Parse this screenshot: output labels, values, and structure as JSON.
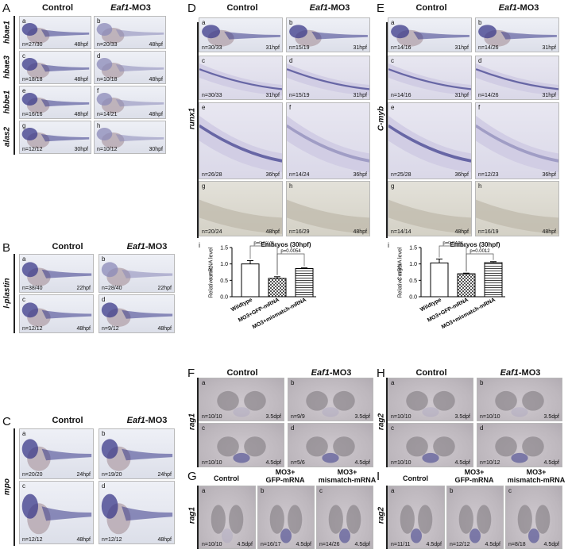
{
  "labels": {
    "control": "Control",
    "eaf1": "Eaf1",
    "mo3": "-MO3",
    "control_g": "Control",
    "gfp_line1": "MO3+",
    "gfp_line2": "GFP-mRNA",
    "mm_line1": "MO3+",
    "mm_line2": "mismatch-mRNA"
  },
  "panels": {
    "A": {
      "letter": "A",
      "genes": [
        "hbae1",
        "hbae3",
        "hbbe1",
        "alas2"
      ],
      "tiles": [
        {
          "sub": "a",
          "count": "n=27/30",
          "stage": "48hpf"
        },
        {
          "sub": "b",
          "count": "n=20/33",
          "stage": "48hpf"
        },
        {
          "sub": "c",
          "count": "n=18/18",
          "stage": "48hpf"
        },
        {
          "sub": "d",
          "count": "n=10/18",
          "stage": "48hpf"
        },
        {
          "sub": "e",
          "count": "n=16/16",
          "stage": "48hpf"
        },
        {
          "sub": "f",
          "count": "n=14/21",
          "stage": "48hpf"
        },
        {
          "sub": "g",
          "count": "n=12/12",
          "stage": "30hpf"
        },
        {
          "sub": "h",
          "count": "n=10/12",
          "stage": "30hpf"
        }
      ]
    },
    "B": {
      "letter": "B",
      "genes": [
        "l-plastin"
      ],
      "tiles": [
        {
          "sub": "a",
          "count": "n=38/40",
          "stage": "22hpf"
        },
        {
          "sub": "b",
          "count": "n=28/40",
          "stage": "22hpf"
        },
        {
          "sub": "c",
          "count": "n=12/12",
          "stage": "48hpf"
        },
        {
          "sub": "d",
          "count": "n=9/12",
          "stage": "48hpf"
        }
      ]
    },
    "C": {
      "letter": "C",
      "genes": [
        "mpo"
      ],
      "tiles": [
        {
          "sub": "a",
          "count": "n=20/20",
          "stage": "24hpf"
        },
        {
          "sub": "b",
          "count": "n=19/20",
          "stage": "24hpf"
        },
        {
          "sub": "c",
          "count": "n=12/12",
          "stage": "48hpf"
        },
        {
          "sub": "d",
          "count": "n=12/12",
          "stage": "48hpf"
        }
      ]
    },
    "D": {
      "letter": "D",
      "genes": [
        "runx1"
      ],
      "tiles": [
        {
          "sub": "a",
          "count": "n=30/33",
          "stage": "31hpf"
        },
        {
          "sub": "b",
          "count": "n=15/19",
          "stage": "31hpf"
        },
        {
          "sub": "c",
          "count": "n=30/33",
          "stage": "31hpf"
        },
        {
          "sub": "d",
          "count": "n=15/19",
          "stage": "31hpf"
        },
        {
          "sub": "e",
          "count": "n=26/28",
          "stage": "36hpf"
        },
        {
          "sub": "f",
          "count": "n=14/24",
          "stage": "36hpf"
        },
        {
          "sub": "g",
          "count": "n=20/24",
          "stage": "48hpf"
        },
        {
          "sub": "h",
          "count": "n=16/29",
          "stage": "48hpf"
        }
      ]
    },
    "E": {
      "letter": "E",
      "genes": [
        "C-myb"
      ],
      "tiles": [
        {
          "sub": "a",
          "count": "n=14/16",
          "stage": "31hpf"
        },
        {
          "sub": "b",
          "count": "n=14/26",
          "stage": "31hpf"
        },
        {
          "sub": "c",
          "count": "n=14/16",
          "stage": "31hpf"
        },
        {
          "sub": "d",
          "count": "n=14/26",
          "stage": "31hpf"
        },
        {
          "sub": "e",
          "count": "n=25/28",
          "stage": "36hpf"
        },
        {
          "sub": "f",
          "count": "n=12/23",
          "stage": "36hpf"
        },
        {
          "sub": "g",
          "count": "n=14/14",
          "stage": "48hpf"
        },
        {
          "sub": "h",
          "count": "n=16/19",
          "stage": "48hpf"
        }
      ]
    },
    "F": {
      "letter": "F",
      "genes": [
        "rag1"
      ],
      "tiles": [
        {
          "sub": "a",
          "count": "n=10/10",
          "stage": "3.5dpf"
        },
        {
          "sub": "b",
          "count": "n=9/9",
          "stage": "3.5dpf"
        },
        {
          "sub": "c",
          "count": "n=10/10",
          "stage": "4.5dpf"
        },
        {
          "sub": "d",
          "count": "n=5/6",
          "stage": "4.5dpf"
        }
      ]
    },
    "H": {
      "letter": "H",
      "genes": [
        "rag2"
      ],
      "tiles": [
        {
          "sub": "a",
          "count": "n=10/10",
          "stage": "3.5dpf"
        },
        {
          "sub": "b",
          "count": "n=10/10",
          "stage": "3.5dpf"
        },
        {
          "sub": "c",
          "count": "n=10/10",
          "stage": "4.5dpf"
        },
        {
          "sub": "d",
          "count": "n=10/12",
          "stage": "4.5dpf"
        }
      ]
    },
    "G": {
      "letter": "G",
      "genes": [
        "rag1"
      ],
      "tiles": [
        {
          "sub": "a",
          "count": "n=10/10",
          "stage": "4.5dpf"
        },
        {
          "sub": "b",
          "count": "n=16/17",
          "stage": "4.5dpf"
        },
        {
          "sub": "c",
          "count": "n=14/26",
          "stage": "4.5dpf"
        }
      ]
    },
    "I": {
      "letter": "I",
      "genes": [
        "rag2"
      ],
      "tiles": [
        {
          "sub": "a",
          "count": "n=11/11",
          "stage": "4.5dpf"
        },
        {
          "sub": "b",
          "count": "n=12/12",
          "stage": "4.5dpf"
        },
        {
          "sub": "c",
          "count": "n=8/18",
          "stage": "4.5dpf"
        }
      ]
    }
  },
  "chart_data": [
    {
      "type": "bar",
      "panel_label": "i",
      "title": "Embryos (30hpf)",
      "ylabel_line1": "runx1",
      "ylabel_line2": "Relative mRNA level",
      "categories": [
        "Wildtype",
        "MO3+GFP-mRNA",
        "MO3+mismatch-mRNA"
      ],
      "values": [
        1.0,
        0.56,
        0.86
      ],
      "errors": [
        0.1,
        0.05,
        0.02
      ],
      "ylim": [
        0,
        1.5
      ],
      "yticks": [
        "0.0",
        "0.5",
        "1.0",
        "1.5"
      ],
      "annotations": [
        "p=0.0279",
        "p=0.0054"
      ]
    },
    {
      "type": "bar",
      "panel_label": "i",
      "title": "Embryos (30hpf)",
      "ylabel_line1": "C-myb",
      "ylabel_line2": "Relative mRNA level",
      "categories": [
        "Wildtype",
        "MO3+GFP-mRNA",
        "MO3+mismatch-mRNA"
      ],
      "values": [
        1.03,
        0.7,
        1.04
      ],
      "errors": [
        0.12,
        0.02,
        0.03
      ],
      "ylim": [
        0,
        1.5
      ],
      "yticks": [
        "0.0",
        "0.5",
        "1.0",
        "1.5"
      ],
      "annotations": [
        "p=0.0442",
        "p=0.0012"
      ]
    }
  ]
}
